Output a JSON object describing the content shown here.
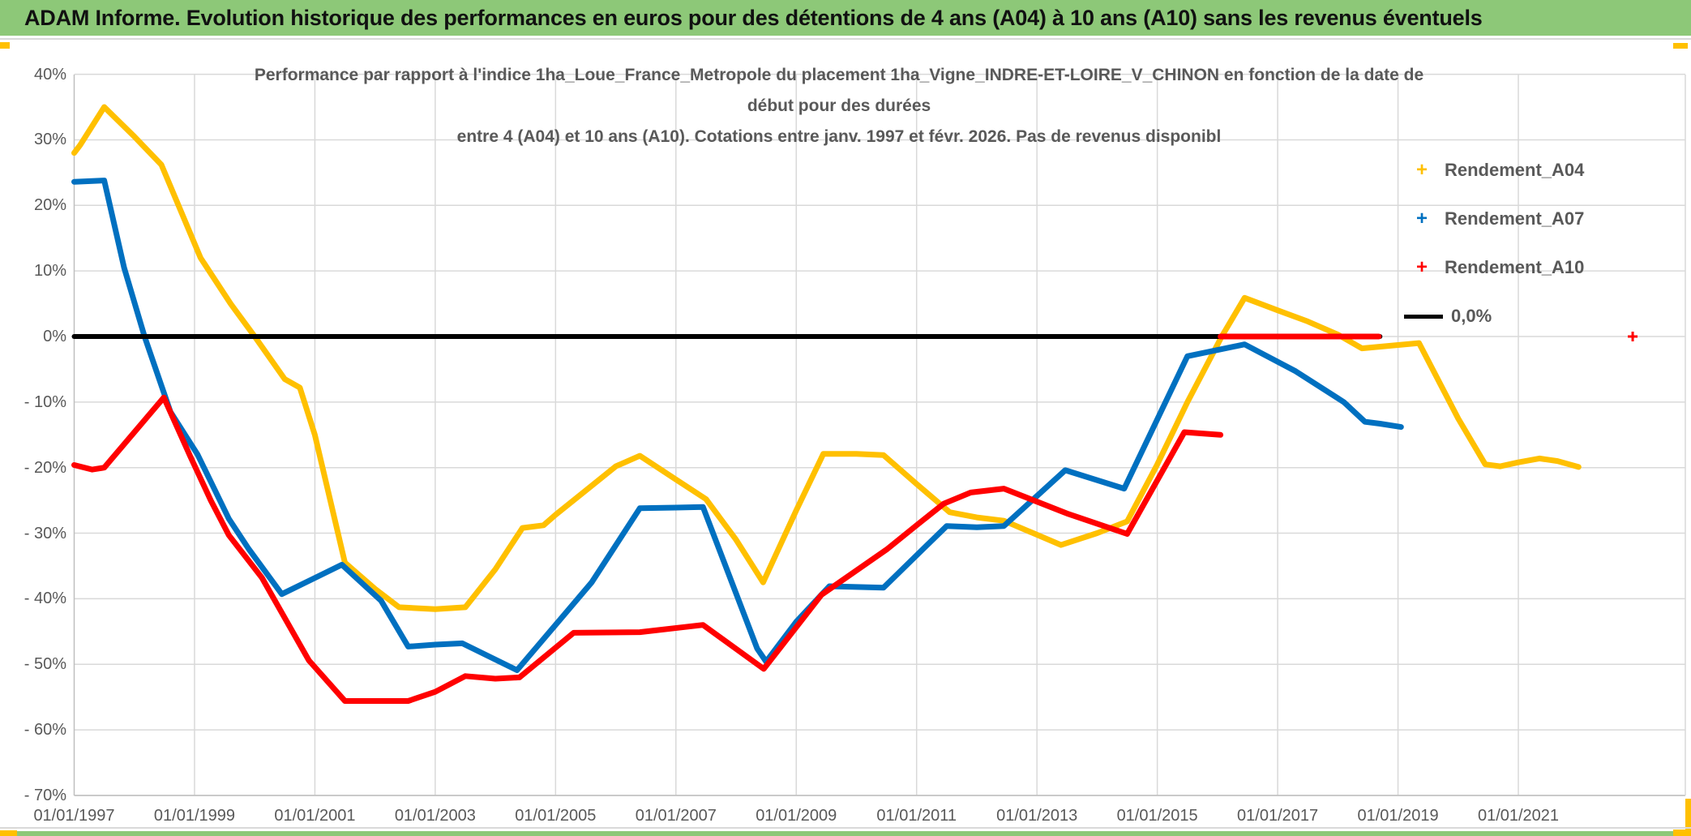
{
  "page": {
    "title": "ADAM Informe. Evolution historique des performances en euros pour des détentions de 4 ans (A04) à 10 ans (A10) sans les revenus éventuels"
  },
  "chart": {
    "title_line1": "Performance par rapport à l'indice 1ha_Loue_France_Metropole  du placement 1ha_Vigne_INDRE-ET-LOIRE_V_CHINON en fonction de la date de",
    "title_line2": "début pour des durées",
    "title_line3": "entre 4 (A04) et 10 ans (A10). Cotations entre janv. 1997 et févr. 2026. Pas de revenus disponibl",
    "legend": [
      {
        "label": "Rendement_A04",
        "color": "#ffc000",
        "marker": "+"
      },
      {
        "label": "Rendement_A07",
        "color": "#0070c0",
        "marker": "+"
      },
      {
        "label": "Rendement_A10",
        "color": "#ff0000",
        "marker": "+"
      },
      {
        "label": "0,0%",
        "color": "#000000",
        "marker": "line"
      }
    ]
  },
  "chart_data": {
    "type": "line",
    "title": "Performance par rapport à l'indice 1ha_Loue_France_Metropole du placement 1ha_Vigne_INDRE-ET-LOIRE_V_CHINON en fonction de la date de début pour des durées entre 4 (A04) et 10 ans (A10). Cotations entre janv. 1997 et févr. 2026. Pas de revenus disponibl",
    "x_axis": {
      "unit": "date de début (année décimale)",
      "range": [
        1997.0,
        2023.8
      ],
      "tick_labels": [
        "01/01/1997",
        "01/01/1999",
        "01/01/2001",
        "01/01/2003",
        "01/01/2005",
        "01/01/2007",
        "01/01/2009",
        "01/01/2011",
        "01/01/2013",
        "01/01/2015",
        "01/01/2017",
        "01/01/2019",
        "01/01/2021"
      ],
      "tick_years": [
        1997,
        1999,
        2001,
        2003,
        2005,
        2007,
        2009,
        2011,
        2013,
        2015,
        2017,
        2019,
        2021
      ]
    },
    "y_axis": {
      "unit": "%",
      "range": [
        -70,
        40
      ],
      "ticks": [
        {
          "label": "40%",
          "value": 40
        },
        {
          "label": "30%",
          "value": 30
        },
        {
          "label": "20%",
          "value": 20
        },
        {
          "label": "10%",
          "value": 10
        },
        {
          "label": "0%",
          "value": 0
        },
        {
          "label": "- 10%",
          "value": -10
        },
        {
          "label": "- 20%",
          "value": -20
        },
        {
          "label": "- 30%",
          "value": -30
        },
        {
          "label": "- 40%",
          "value": -40
        },
        {
          "label": "- 50%",
          "value": -50
        },
        {
          "label": "- 60%",
          "value": -60
        },
        {
          "label": "- 70%",
          "value": -70
        }
      ],
      "grid": true
    },
    "legend_position": "right",
    "series": [
      {
        "name": "Rendement_A04",
        "color": "#ffc000",
        "width": 7,
        "points": [
          [
            1997.0,
            28.0
          ],
          [
            1997.1,
            29.2
          ],
          [
            1997.5,
            35.0
          ],
          [
            1998.0,
            30.5
          ],
          [
            1998.45,
            26.2
          ],
          [
            1999.1,
            12.0
          ],
          [
            1999.6,
            5.0
          ],
          [
            2000.0,
            0.0
          ],
          [
            2000.5,
            -6.5
          ],
          [
            2000.75,
            -7.8
          ],
          [
            2001.0,
            -15.0
          ],
          [
            2001.5,
            -34.5
          ],
          [
            2002.0,
            -38.5
          ],
          [
            2002.4,
            -41.3
          ],
          [
            2003.0,
            -41.6
          ],
          [
            2003.5,
            -41.3
          ],
          [
            2004.0,
            -35.5
          ],
          [
            2004.45,
            -29.2
          ],
          [
            2004.8,
            -28.8
          ],
          [
            2005.0,
            -27.2
          ],
          [
            2005.5,
            -23.5
          ],
          [
            2006.0,
            -19.8
          ],
          [
            2006.4,
            -18.2
          ],
          [
            2007.0,
            -21.8
          ],
          [
            2007.5,
            -24.8
          ],
          [
            2008.0,
            -31.0
          ],
          [
            2008.45,
            -37.5
          ],
          [
            2009.0,
            -26.5
          ],
          [
            2009.45,
            -17.9
          ],
          [
            2010.0,
            -17.9
          ],
          [
            2010.45,
            -18.1
          ],
          [
            2011.0,
            -22.5
          ],
          [
            2011.55,
            -26.8
          ],
          [
            2012.0,
            -27.6
          ],
          [
            2012.45,
            -28.1
          ],
          [
            2013.4,
            -31.8
          ],
          [
            2014.0,
            -30.0
          ],
          [
            2014.5,
            -28.2
          ],
          [
            2015.0,
            -19.5
          ],
          [
            2015.5,
            -10.0
          ],
          [
            2016.07,
            0.0
          ],
          [
            2016.45,
            5.9
          ],
          [
            2017.0,
            4.0
          ],
          [
            2017.5,
            2.3
          ],
          [
            2018.0,
            0.3
          ],
          [
            2018.4,
            -1.8
          ],
          [
            2019.0,
            -1.3
          ],
          [
            2019.35,
            -1.0
          ],
          [
            2020.0,
            -12.5
          ],
          [
            2020.45,
            -19.5
          ],
          [
            2020.7,
            -19.8
          ],
          [
            2021.0,
            -19.2
          ],
          [
            2021.35,
            -18.6
          ],
          [
            2021.65,
            -19.0
          ],
          [
            2022.0,
            -19.9
          ]
        ]
      },
      {
        "name": "Rendement_A07",
        "color": "#0070c0",
        "width": 7,
        "points": [
          [
            1997.0,
            23.6
          ],
          [
            1997.5,
            23.8
          ],
          [
            1997.83,
            10.5
          ],
          [
            1998.17,
            0.0
          ],
          [
            1998.6,
            -11.5
          ],
          [
            1999.05,
            -18.0
          ],
          [
            1999.57,
            -27.8
          ],
          [
            1999.9,
            -32.4
          ],
          [
            2000.45,
            -39.3
          ],
          [
            2001.45,
            -34.8
          ],
          [
            2002.1,
            -40.3
          ],
          [
            2002.55,
            -47.3
          ],
          [
            2003.0,
            -47.0
          ],
          [
            2003.45,
            -46.8
          ],
          [
            2004.36,
            -50.9
          ],
          [
            2005.0,
            -44.0
          ],
          [
            2005.6,
            -37.5
          ],
          [
            2006.4,
            -26.2
          ],
          [
            2007.0,
            -26.1
          ],
          [
            2007.45,
            -26.0
          ],
          [
            2008.35,
            -47.6
          ],
          [
            2008.5,
            -49.6
          ],
          [
            2009.0,
            -43.5
          ],
          [
            2009.55,
            -38.1
          ],
          [
            2010.45,
            -38.3
          ],
          [
            2011.5,
            -28.9
          ],
          [
            2012.0,
            -29.1
          ],
          [
            2012.45,
            -28.9
          ],
          [
            2013.47,
            -20.4
          ],
          [
            2014.45,
            -23.2
          ],
          [
            2015.5,
            -3.0
          ],
          [
            2016.45,
            -1.2
          ],
          [
            2017.3,
            -5.3
          ],
          [
            2018.1,
            -10.0
          ],
          [
            2018.45,
            -13.0
          ],
          [
            2018.7,
            -13.3
          ],
          [
            2019.05,
            -13.8
          ]
        ]
      },
      {
        "name": "0,0%",
        "color": "#000000",
        "width": 6,
        "points": [
          [
            1997.0,
            0.0
          ],
          [
            2018.7,
            0.0
          ]
        ]
      },
      {
        "name": "Rendement_A10",
        "color": "#ff0000",
        "width": 7,
        "points": [
          [
            1997.0,
            -19.6
          ],
          [
            1997.3,
            -20.3
          ],
          [
            1997.5,
            -20.0
          ],
          [
            1998.49,
            -9.3
          ],
          [
            1998.93,
            -18.3
          ],
          [
            1999.27,
            -25.0
          ],
          [
            1999.57,
            -30.3
          ],
          [
            2000.12,
            -36.8
          ],
          [
            2000.9,
            -49.4
          ],
          [
            2001.5,
            -55.6
          ],
          [
            2002.55,
            -55.6
          ],
          [
            2003.0,
            -54.2
          ],
          [
            2003.5,
            -51.8
          ],
          [
            2004.0,
            -52.2
          ],
          [
            2004.4,
            -52.0
          ],
          [
            2005.3,
            -45.2
          ],
          [
            2006.4,
            -45.1
          ],
          [
            2007.45,
            -44.0
          ],
          [
            2008.46,
            -50.7
          ],
          [
            2009.42,
            -39.4
          ],
          [
            2010.5,
            -32.5
          ],
          [
            2011.0,
            -28.8
          ],
          [
            2011.45,
            -25.5
          ],
          [
            2011.9,
            -23.8
          ],
          [
            2012.45,
            -23.2
          ],
          [
            2013.5,
            -27.0
          ],
          [
            2014.5,
            -30.1
          ],
          [
            2015.45,
            -14.6
          ],
          [
            2016.05,
            -15.0
          ]
        ]
      },
      {
        "name": "Rendement_A10_segment_zero",
        "color": "#ff0000",
        "width": 7,
        "points": [
          [
            2016.05,
            0.0
          ],
          [
            2018.68,
            0.0
          ]
        ]
      }
    ],
    "stray_marker": {
      "x": 2022.9,
      "y": 0.0,
      "color": "#ff0000"
    }
  }
}
